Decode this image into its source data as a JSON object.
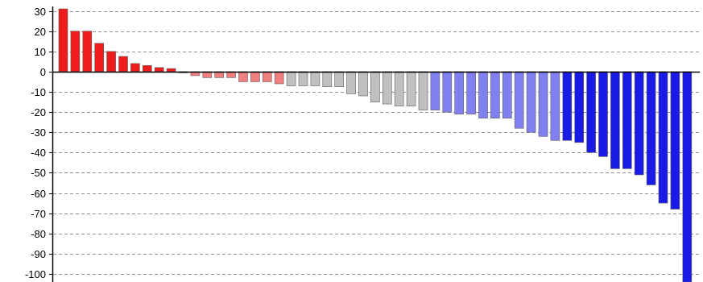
{
  "chart_data": {
    "type": "bar",
    "title": "",
    "xlabel": "",
    "ylabel": "",
    "ylim": [
      -104,
      33
    ],
    "y_ticks": [
      "30",
      "20",
      "10",
      "0",
      "-10",
      "-20",
      "-30",
      "-40",
      "-50",
      "-60",
      "-70",
      "-80",
      "-90",
      "-100"
    ],
    "y_tick_values": [
      30,
      20,
      10,
      0,
      -10,
      -20,
      -30,
      -40,
      -50,
      -60,
      -70,
      -80,
      -90,
      -100
    ],
    "grid": "horizontal dashed",
    "values": [
      31,
      20,
      20,
      14,
      10,
      7.5,
      4,
      3,
      2,
      1.5,
      -0.5,
      -2,
      -3,
      -3,
      -3,
      -5,
      -5,
      -5,
      -6,
      -7,
      -7,
      -7,
      -7.5,
      -7.5,
      -11,
      -12,
      -15,
      -16,
      -17,
      -17,
      -19,
      -19,
      -20,
      -21,
      -21,
      -23,
      -23,
      -23,
      -28,
      -30,
      -32,
      -34,
      -34,
      -35,
      -40,
      -42,
      -48,
      -48,
      -51,
      -56,
      -65,
      -68,
      -104
    ],
    "bar_colors": [
      "#ee1c1c",
      "#ee1c1c",
      "#ee1c1c",
      "#ee1c1c",
      "#ee1c1c",
      "#ee1c1c",
      "#ee1c1c",
      "#ee1c1c",
      "#ee1c1c",
      "#ee1c1c",
      "#ee1c1c",
      "#f08080",
      "#f08080",
      "#f08080",
      "#f08080",
      "#f08080",
      "#f08080",
      "#f08080",
      "#f08080",
      "#c0c0c0",
      "#c0c0c0",
      "#c0c0c0",
      "#c0c0c0",
      "#c0c0c0",
      "#c0c0c0",
      "#c0c0c0",
      "#c0c0c0",
      "#c0c0c0",
      "#c0c0c0",
      "#c0c0c0",
      "#c0c0c0",
      "#8080f0",
      "#8080f0",
      "#8080f0",
      "#8080f0",
      "#8080f0",
      "#8080f0",
      "#8080f0",
      "#8080f0",
      "#8080f0",
      "#8080f0",
      "#8080f0",
      "#1a1ae6",
      "#1a1ae6",
      "#1a1ae6",
      "#1a1ae6",
      "#1a1ae6",
      "#1a1ae6",
      "#1a1ae6",
      "#1a1ae6",
      "#1a1ae6",
      "#1a1ae6",
      "#1a1ae6"
    ],
    "colors": {
      "red": "#ee1c1c",
      "light_red": "#f08080",
      "gray": "#c0c0c0",
      "light_blue": "#8080f0",
      "blue": "#1a1ae6",
      "grid": "#909090",
      "axis": "#000000"
    }
  }
}
